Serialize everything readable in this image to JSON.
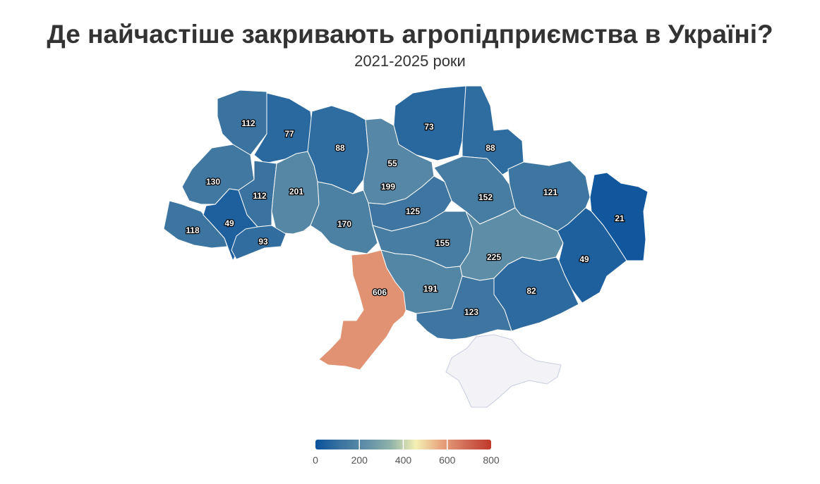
{
  "title": "Де найчастіше закривають агропідприємства в Україні?",
  "subtitle": "2021-2025 роки",
  "colors": {
    "scale": [
      "#08519c",
      "#3b74a0",
      "#5f8ea8",
      "#8fb3a9",
      "#f4f0b4",
      "#e8a47e",
      "#d06a56",
      "#c0392b"
    ],
    "no_data": "#f2f2f7"
  },
  "legend": {
    "min": 0,
    "max": 800,
    "ticks": [
      "0",
      "200",
      "400",
      "600",
      "800"
    ]
  },
  "chart_data": {
    "type": "choropleth",
    "values": [
      112,
      77,
      88,
      73,
      88,
      130,
      112,
      201,
      55,
      199,
      152,
      121,
      125,
      21,
      118,
      49,
      170,
      93,
      155,
      225,
      49,
      606,
      191,
      82,
      123
    ]
  }
}
